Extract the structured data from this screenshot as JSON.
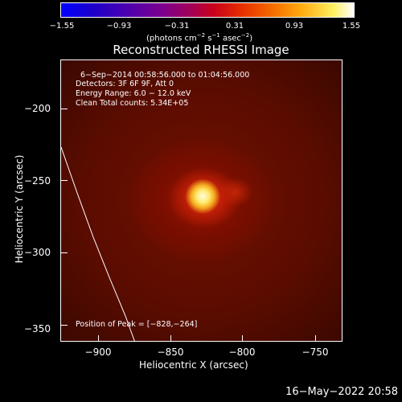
{
  "colorbar": {
    "ticks": [
      "−1.55",
      "−0.93",
      "−0.31",
      "0.31",
      "0.93",
      "1.55"
    ],
    "units_main": "(photons cm",
    "units_sup1": "−2",
    "units_mid": " s",
    "units_sup2": "−1",
    "units_mid2": " asec",
    "units_sup3": "−2",
    "units_end": ")"
  },
  "title": "Reconstructed RHESSI Image",
  "info": {
    "line1": "6−Sep−2014 00:58:56.000 to 01:04:56.000",
    "line2": "Detectors: 3F 6F 9F, Att 0",
    "line3": "Energy Range: 6.0 − 12.0 keV",
    "line4": "Clean    Total counts: 5.34E+05",
    "peak": "Position of Peak = [−828,−264]"
  },
  "axes": {
    "xlabel": "Heliocentric X (arcsec)",
    "ylabel": "Heliocentric Y (arcsec)",
    "xticks": [
      "−900",
      "−850",
      "−800",
      "−750"
    ],
    "yticks": [
      "−200",
      "−250",
      "−300",
      "−350"
    ]
  },
  "timestamp": "16−May−2022 20:58"
}
